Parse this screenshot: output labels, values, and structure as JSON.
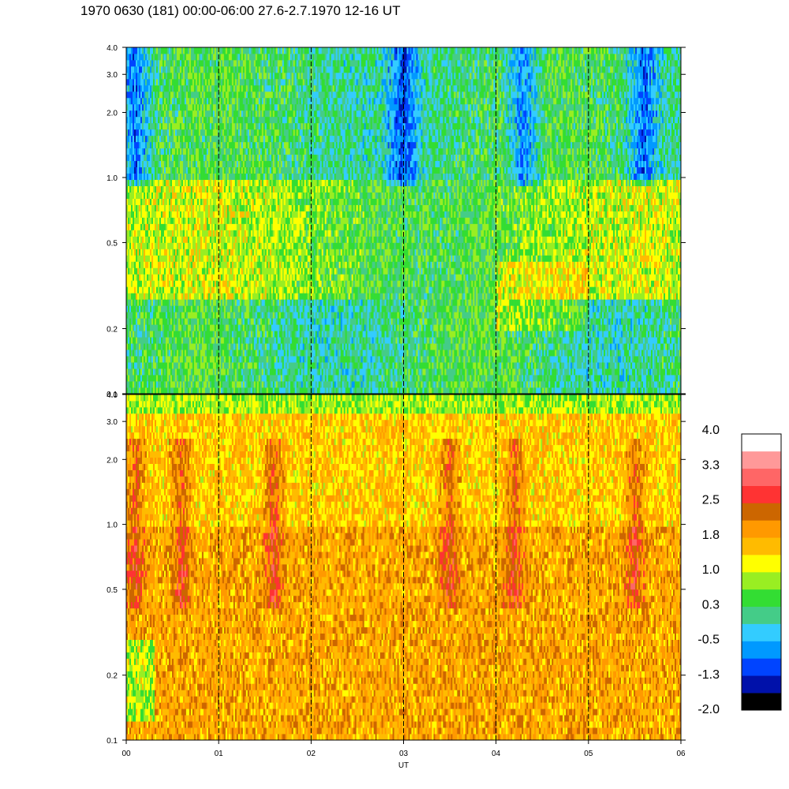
{
  "title": "1970 0630 (181) 00:00-06:00 27.6-2.7.1970  12-16 UT",
  "colors": {
    "scale": [
      "#000000",
      "#0011aa",
      "#0044ff",
      "#0099ff",
      "#33ccff",
      "#44cc88",
      "#33dd33",
      "#99ee22",
      "#ffff00",
      "#ffbb00",
      "#ff9900",
      "#cc6600",
      "#ff3333",
      "#ff6666",
      "#ff9999",
      "#ffffff"
    ]
  },
  "chart_data": {
    "type": "heatmap",
    "x": {
      "label": "UT",
      "range": [
        0,
        6
      ],
      "ticks": [
        {
          "value": 0,
          "label": "00"
        },
        {
          "value": 1,
          "label": "01"
        },
        {
          "value": 2,
          "label": "02"
        },
        {
          "value": 3,
          "label": "03"
        },
        {
          "value": 4,
          "label": "04"
        },
        {
          "value": 5,
          "label": "05"
        },
        {
          "value": 6,
          "label": "06"
        }
      ],
      "dashed_lines": [
        1,
        2,
        3,
        4,
        5
      ]
    },
    "panels": [
      {
        "y_scale": "log",
        "y_range": [
          0.1,
          4.0
        ],
        "y_ticks": [
          {
            "value": 0.1,
            "label": "0.1"
          },
          {
            "value": 0.2,
            "label": "0.2"
          },
          {
            "value": 0.5,
            "label": "0.5"
          },
          {
            "value": 1.0,
            "label": "1.0"
          },
          {
            "value": 2.0,
            "label": "2.0"
          },
          {
            "value": 3.0,
            "label": "3.0"
          },
          {
            "value": 4.0,
            "label": "4.0"
          }
        ],
        "typical_level": {
          "below_0.3": 0.3,
          "0.3_to_1.0": 1.0,
          "1.0_to_4.0": 0.3,
          "quiet_blue_patches_near_x": [
            0.1,
            3.0,
            4.3,
            5.6
          ]
        }
      },
      {
        "y_scale": "log",
        "y_range": [
          0.1,
          4.0
        ],
        "y_ticks": [
          {
            "value": 0.1,
            "label": "0.1"
          },
          {
            "value": 0.2,
            "label": "0.2"
          },
          {
            "value": 0.5,
            "label": "0.5"
          },
          {
            "value": 1.0,
            "label": "1.0"
          },
          {
            "value": 2.0,
            "label": "2.0"
          },
          {
            "value": 3.0,
            "label": "3.0"
          },
          {
            "value": 4.0,
            "label": "4.0"
          }
        ],
        "typical_level": {
          "below_0.3": 1.8,
          "0.3_to_1.0": 1.8,
          "1.0_to_4.0": 1.5,
          "top_edge": 0.8,
          "hot_patches_near_x": [
            0.1,
            0.6,
            1.6,
            3.5,
            4.2,
            5.5
          ]
        }
      }
    ],
    "colorbar": {
      "min": -2.0,
      "max": 4.0,
      "levels": 16,
      "labels": [
        "4.0",
        "3.3",
        "2.5",
        "1.8",
        "1.0",
        "0.3",
        "-0.5",
        "-1.3",
        "-2.0"
      ]
    }
  }
}
